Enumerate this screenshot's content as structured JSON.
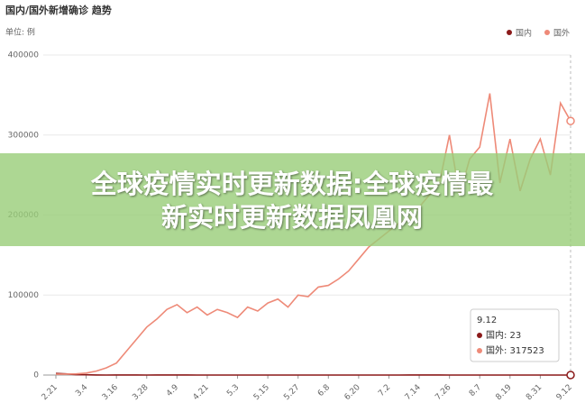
{
  "chart_data": {
    "type": "line",
    "title": "国内/国外新增确诊 趋势",
    "unit_label": "单位: 例",
    "categories": [
      "2.21",
      null,
      null,
      "3.4",
      null,
      null,
      "3.16",
      null,
      null,
      "3.28",
      null,
      null,
      "4.9",
      null,
      null,
      "4.21",
      null,
      null,
      "5.3",
      null,
      null,
      "5.15",
      null,
      null,
      "5.27",
      null,
      null,
      "6.8",
      null,
      null,
      "6.20",
      null,
      null,
      "7.2",
      null,
      null,
      "7.14",
      null,
      null,
      "7.26",
      null,
      null,
      "8.7",
      null,
      null,
      "8.19",
      null,
      null,
      "8.31",
      null,
      null,
      "9.12"
    ],
    "series": [
      {
        "name": "国内",
        "color": "#8b1a1a",
        "values": [
          2000,
          1500,
          500,
          300,
          100,
          50,
          80,
          100,
          80,
          50,
          60,
          80,
          100,
          60,
          40,
          30,
          20,
          10,
          5,
          5,
          10,
          10,
          5,
          5,
          5,
          20,
          30,
          40,
          50,
          30,
          20,
          10,
          10,
          20,
          50,
          100,
          120,
          80,
          60,
          40,
          30,
          20,
          20,
          10,
          10,
          10,
          20,
          20,
          10,
          15,
          20,
          23
        ]
      },
      {
        "name": "国外",
        "color": "#ee8a78",
        "values": [
          1000,
          1200,
          1500,
          2500,
          5000,
          9000,
          15000,
          30000,
          45000,
          60000,
          70000,
          82000,
          88000,
          78000,
          85000,
          75000,
          82000,
          78000,
          72000,
          85000,
          80000,
          90000,
          95000,
          85000,
          100000,
          98000,
          110000,
          112000,
          120000,
          130000,
          145000,
          160000,
          170000,
          180000,
          190000,
          195000,
          210000,
          225000,
          240000,
          300000,
          225000,
          270000,
          285000,
          352000,
          240000,
          295000,
          230000,
          270000,
          295000,
          250000,
          340000,
          317523
        ]
      }
    ],
    "ylim": [
      0,
      400000
    ],
    "yticks": [
      0,
      100000,
      200000,
      300000,
      400000
    ],
    "grid": true,
    "legend": "top-right"
  },
  "tooltip": {
    "title": "9.12",
    "items": [
      "国内: 23",
      "国外: 317523"
    ]
  },
  "banner": {
    "lines": [
      "全球疫情实时更新数据:全球疫情最",
      "新实时更新数据凤凰网"
    ]
  }
}
